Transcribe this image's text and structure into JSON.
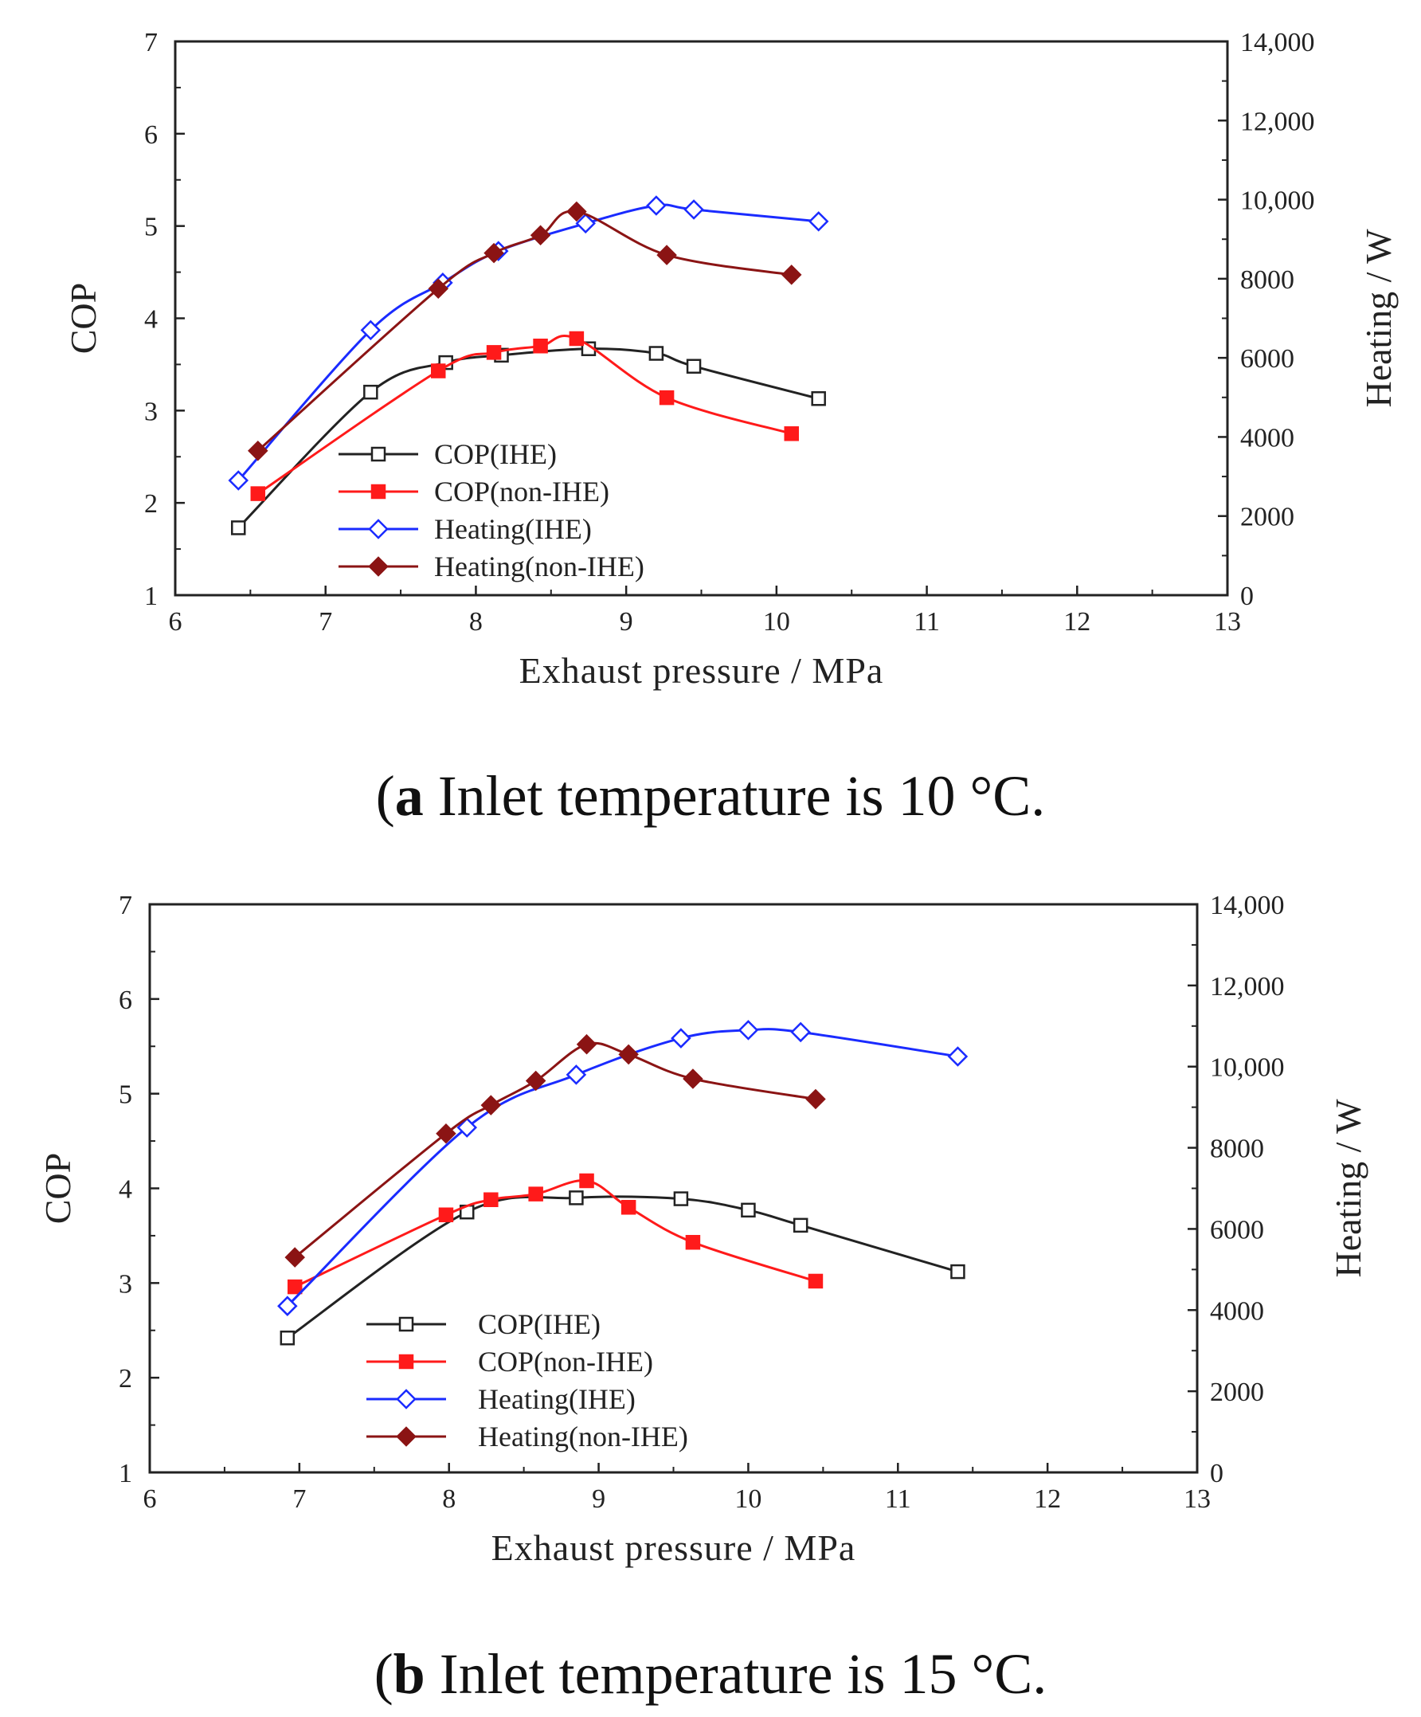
{
  "captions": [
    {
      "label": "a",
      "text": " Inlet temperature is 10 °C."
    },
    {
      "label": "b",
      "text": " Inlet temperature is 15 °C."
    }
  ],
  "colors": {
    "cop_ihe": "#222222",
    "cop_non_ihe": "#ff1a1a",
    "heating_ihe": "#1a2bff",
    "heating_non_ihe": "#8b1414"
  },
  "chart_data": [
    {
      "type": "line",
      "title": "(a) Inlet temperature is 10 °C.",
      "xlabel": "Exhaust pressure / MPa",
      "ylabel": "COP",
      "y2label": "Heating / W",
      "xlim": [
        6,
        13
      ],
      "ylim": [
        1,
        7
      ],
      "y2lim": [
        0,
        14000
      ],
      "xticks": [
        "6",
        "7",
        "8",
        "9",
        "10",
        "11",
        "12",
        "13"
      ],
      "yticks": [
        "1",
        "2",
        "3",
        "4",
        "5",
        "6",
        "7"
      ],
      "y2ticks": [
        "0",
        "2000",
        "4000",
        "6000",
        "8000",
        "10,000",
        "12,000",
        "14,000"
      ],
      "legend": [
        "COP(IHE)",
        "COP(non-IHE)",
        "Heating(IHE)",
        "Heating(non-IHE)"
      ],
      "series": [
        {
          "name": "COP(IHE)",
          "axis": "left",
          "marker": "open-square",
          "color": "#222222",
          "x": [
            6.42,
            7.3,
            7.8,
            8.17,
            8.75,
            9.2,
            9.45,
            10.28
          ],
          "y": [
            1.73,
            3.2,
            3.52,
            3.6,
            3.67,
            3.62,
            3.48,
            3.13
          ]
        },
        {
          "name": "COP(non-IHE)",
          "axis": "left",
          "marker": "filled-square",
          "color": "#ff1a1a",
          "x": [
            6.55,
            7.75,
            8.12,
            8.43,
            8.67,
            9.27,
            10.1
          ],
          "y": [
            2.1,
            3.43,
            3.63,
            3.7,
            3.78,
            3.14,
            2.75
          ]
        },
        {
          "name": "Heating(IHE)",
          "axis": "right",
          "marker": "open-diamond",
          "color": "#1a2bff",
          "x": [
            6.42,
            7.3,
            7.78,
            8.15,
            8.73,
            9.2,
            9.45,
            10.28
          ],
          "y": [
            2900,
            6700,
            7900,
            8700,
            9400,
            9850,
            9750,
            9450
          ]
        },
        {
          "name": "Heating(non-IHE)",
          "axis": "right",
          "marker": "filled-diamond",
          "color": "#8b1414",
          "x": [
            6.55,
            7.75,
            8.12,
            8.43,
            8.67,
            9.27,
            10.1
          ],
          "y": [
            3650,
            7750,
            8650,
            9100,
            9700,
            8600,
            8100
          ]
        }
      ]
    },
    {
      "type": "line",
      "title": "(b) Inlet temperature is 15 °C.",
      "xlabel": "Exhaust pressure / MPa",
      "ylabel": "COP",
      "y2label": "Heating / W",
      "xlim": [
        6,
        13
      ],
      "ylim": [
        1,
        7
      ],
      "y2lim": [
        0,
        14000
      ],
      "xticks": [
        "6",
        "7",
        "8",
        "9",
        "10",
        "11",
        "12",
        "13"
      ],
      "yticks": [
        "1",
        "2",
        "3",
        "4",
        "5",
        "6",
        "7"
      ],
      "y2ticks": [
        "0",
        "2000",
        "4000",
        "6000",
        "8000",
        "10,000",
        "12,000",
        "14,000"
      ],
      "legend": [
        "COP(IHE)",
        "COP(non-IHE)",
        "Heating(IHE)",
        "Heating(non-IHE)"
      ],
      "series": [
        {
          "name": "COP(IHE)",
          "axis": "left",
          "marker": "open-square",
          "color": "#222222",
          "x": [
            6.92,
            8.12,
            8.85,
            9.55,
            10.0,
            10.35,
            11.4
          ],
          "y": [
            2.42,
            3.75,
            3.9,
            3.89,
            3.77,
            3.61,
            3.12
          ]
        },
        {
          "name": "COP(non-IHE)",
          "axis": "left",
          "marker": "filled-square",
          "color": "#ff1a1a",
          "x": [
            6.97,
            7.98,
            8.28,
            8.58,
            8.92,
            9.2,
            9.63,
            10.45
          ],
          "y": [
            2.96,
            3.72,
            3.88,
            3.94,
            4.08,
            3.8,
            3.43,
            3.02
          ]
        },
        {
          "name": "Heating(IHE)",
          "axis": "right",
          "marker": "open-diamond",
          "color": "#1a2bff",
          "x": [
            6.92,
            8.12,
            8.85,
            9.55,
            10.0,
            10.35,
            11.4
          ],
          "y": [
            4100,
            8500,
            9800,
            10700,
            10900,
            10850,
            10250
          ]
        },
        {
          "name": "Heating(non-IHE)",
          "axis": "right",
          "marker": "filled-diamond",
          "color": "#8b1414",
          "x": [
            6.97,
            7.98,
            8.28,
            8.58,
            8.92,
            9.2,
            9.63,
            10.45
          ],
          "y": [
            5300,
            8350,
            9050,
            9650,
            10550,
            10300,
            9700,
            9200
          ]
        }
      ]
    }
  ]
}
